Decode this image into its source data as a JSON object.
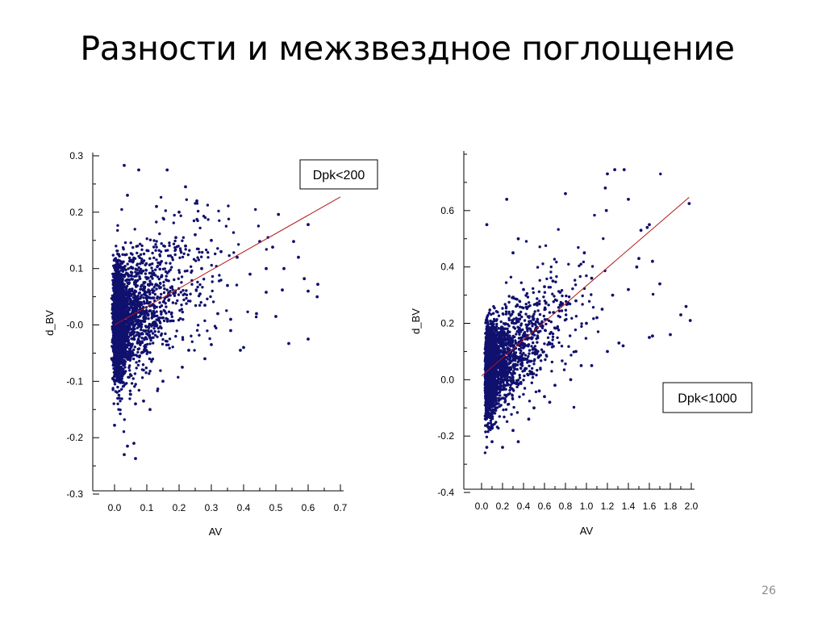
{
  "slide": {
    "title": "Разности и межзвездное поглощение",
    "number": "26"
  },
  "colors": {
    "points": "#10106e",
    "fit_line": "#b01818",
    "axis": "#000000",
    "text": "#000000",
    "slide_number": "#8c8c8c"
  },
  "chart_data": [
    {
      "type": "scatter",
      "title": "",
      "annotation": "Dpk<200",
      "xlabel": "AV",
      "ylabel": "d_BV",
      "xlim": [
        -0.07,
        0.7
      ],
      "ylim": [
        -0.3,
        0.3
      ],
      "xticks": [
        0.0,
        0.1,
        0.2,
        0.3,
        0.4,
        0.5,
        0.6,
        0.7
      ],
      "xtick_labels": [
        "0.0",
        "0.1",
        "0.2",
        "0.3",
        "0.4",
        "0.5",
        "0.6",
        "0.7"
      ],
      "yticks": [
        -0.3,
        -0.2,
        -0.1,
        0.0,
        0.1,
        0.2,
        0.3
      ],
      "ytick_labels": [
        "-0.3",
        "-0.2",
        "-0.1",
        "-0.0",
        "0.1",
        "0.2",
        "0.3"
      ],
      "grid": false,
      "fit_line": {
        "x": [
          0.0,
          0.7
        ],
        "y": [
          0.0,
          0.227
        ]
      },
      "series": [
        {
          "points": [
            [
              0.03,
              0.283
            ],
            [
              0.075,
              0.275
            ],
            [
              0.163,
              0.275
            ],
            [
              0.22,
              0.245
            ],
            [
              0.255,
              0.22
            ],
            [
              0.04,
              0.23
            ],
            [
              0.13,
              0.21
            ],
            [
              0.2,
              0.2
            ],
            [
              0.508,
              0.196
            ],
            [
              0.6,
              0.178
            ],
            [
              0.45,
              0.148
            ],
            [
              0.49,
              0.138
            ],
            [
              0.555,
              0.148
            ],
            [
              0.57,
              0.12
            ],
            [
              0.525,
              0.1
            ],
            [
              0.588,
              0.082
            ],
            [
              0.63,
              0.072
            ],
            [
              0.6,
              0.06
            ],
            [
              0.628,
              0.05
            ],
            [
              0.47,
              0.058
            ],
            [
              0.52,
              0.062
            ],
            [
              0.42,
              0.09
            ],
            [
              0.36,
              0.01
            ],
            [
              0.36,
              -0.01
            ],
            [
              0.5,
              0.015
            ],
            [
              0.6,
              -0.025
            ],
            [
              0.54,
              -0.033
            ],
            [
              0.4,
              -0.04
            ],
            [
              0.39,
              -0.045
            ],
            [
              0.3,
              -0.035
            ],
            [
              0.32,
              0.02
            ],
            [
              0.28,
              0.035
            ],
            [
              0.44,
              0.02
            ],
            [
              0.35,
              0.07
            ],
            [
              0.265,
              0.055
            ],
            [
              0.47,
              0.1
            ],
            [
              0.38,
              0.12
            ],
            [
              0.33,
              0.13
            ],
            [
              0.3,
              0.15
            ],
            [
              0.25,
              0.16
            ],
            [
              0.27,
              0.1
            ],
            [
              0.06,
              -0.21
            ],
            [
              0.03,
              -0.23
            ],
            [
              0.065,
              -0.237
            ],
            [
              0.04,
              -0.215
            ],
            [
              0.09,
              -0.135
            ],
            [
              0.065,
              -0.14
            ],
            [
              0.0,
              -0.178
            ],
            [
              0.15,
              -0.1
            ],
            [
              0.11,
              -0.15
            ],
            [
              0.21,
              -0.075
            ],
            [
              0.28,
              -0.06
            ],
            [
              0.23,
              -0.045
            ],
            [
              0.22,
              0.14
            ],
            [
              0.19,
              0.155
            ]
          ]
        }
      ]
    },
    {
      "type": "scatter",
      "title": "",
      "annotation": "Dpk<1000",
      "xlabel": "AV",
      "ylabel": "d_BV",
      "xlim": [
        -0.12,
        2.15
      ],
      "ylim": [
        -0.4,
        0.8
      ],
      "xticks": [
        0.0,
        0.2,
        0.4,
        0.6,
        0.8,
        1.0,
        1.2,
        1.4,
        1.6,
        1.8,
        2.0
      ],
      "xtick_labels": [
        "0.0",
        "0.2",
        "0.4",
        "0.6",
        "0.8",
        "1.0",
        "1.2",
        "1.4",
        "1.6",
        "1.8",
        "2.0"
      ],
      "yticks": [
        -0.4,
        -0.2,
        0.0,
        0.2,
        0.4,
        0.6
      ],
      "ytick_labels": [
        "-0.4",
        "-0.2",
        "0.0",
        "0.2",
        "0.4",
        "0.6"
      ],
      "grid": false,
      "fit_line": {
        "x": [
          0.0,
          1.98
        ],
        "y": [
          0.013,
          0.647
        ]
      },
      "series": [
        {
          "points": [
            [
              1.27,
              0.745
            ],
            [
              1.36,
              0.745
            ],
            [
              1.2,
              0.73
            ],
            [
              1.18,
              0.68
            ],
            [
              1.4,
              0.64
            ],
            [
              0.24,
              0.64
            ],
            [
              0.8,
              0.66
            ],
            [
              1.98,
              0.625
            ],
            [
              1.19,
              0.6
            ],
            [
              1.6,
              0.55
            ],
            [
              1.58,
              0.54
            ],
            [
              1.52,
              0.53
            ],
            [
              0.05,
              0.55
            ],
            [
              0.35,
              0.5
            ],
            [
              0.3,
              0.45
            ],
            [
              1.5,
              0.43
            ],
            [
              1.63,
              0.42
            ],
            [
              1.48,
              0.4
            ],
            [
              1.95,
              0.26
            ],
            [
              1.9,
              0.23
            ],
            [
              1.99,
              0.21
            ],
            [
              1.8,
              0.16
            ],
            [
              1.63,
              0.155
            ],
            [
              1.6,
              0.15
            ],
            [
              1.35,
              0.12
            ],
            [
              1.31,
              0.13
            ],
            [
              1.0,
              0.2
            ],
            [
              1.1,
              0.22
            ],
            [
              1.15,
              0.25
            ],
            [
              1.25,
              0.3
            ],
            [
              0.9,
              0.1
            ],
            [
              0.95,
              0.05
            ],
            [
              0.85,
              0.0
            ],
            [
              0.7,
              -0.02
            ],
            [
              0.6,
              -0.06
            ],
            [
              0.65,
              -0.08
            ],
            [
              0.5,
              -0.1
            ],
            [
              0.3,
              -0.18
            ],
            [
              0.35,
              -0.22
            ],
            [
              0.2,
              -0.24
            ],
            [
              0.05,
              -0.24
            ],
            [
              0.1,
              -0.22
            ],
            [
              0.45,
              -0.14
            ],
            [
              0.55,
              -0.04
            ],
            [
              1.05,
              0.05
            ],
            [
              1.2,
              0.1
            ],
            [
              0.75,
              0.31
            ],
            [
              0.68,
              0.35
            ],
            [
              0.6,
              0.33
            ],
            [
              0.4,
              0.32
            ],
            [
              1.05,
              0.36
            ],
            [
              0.9,
              0.28
            ],
            [
              1.4,
              0.32
            ],
            [
              1.7,
              0.34
            ],
            [
              0.98,
              0.45
            ]
          ]
        }
      ]
    }
  ]
}
